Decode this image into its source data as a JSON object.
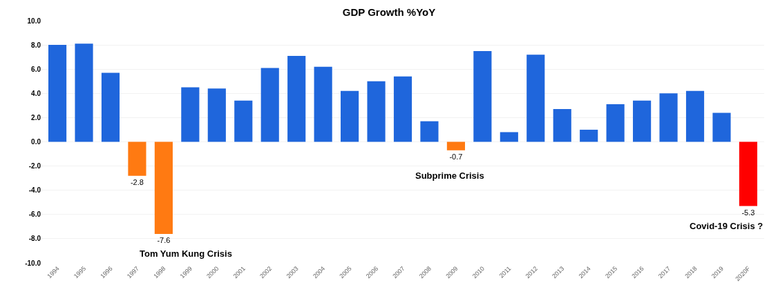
{
  "chart_data": {
    "type": "bar",
    "title": "GDP Growth %YoY",
    "categories": [
      "1994",
      "1995",
      "1996",
      "1997",
      "1998",
      "1999",
      "2000",
      "2001",
      "2002",
      "2003",
      "2004",
      "2005",
      "2006",
      "2007",
      "2008",
      "2009",
      "2010",
      "2011",
      "2012",
      "2013",
      "2014",
      "2015",
      "2016",
      "2017",
      "2018",
      "2019",
      "2020F"
    ],
    "values": [
      8.0,
      8.1,
      5.7,
      -2.8,
      -7.6,
      4.5,
      4.4,
      3.4,
      6.1,
      7.1,
      6.2,
      4.2,
      5.0,
      5.4,
      1.7,
      -0.7,
      7.5,
      0.8,
      7.2,
      2.7,
      1.0,
      3.1,
      3.4,
      4.0,
      4.2,
      2.4,
      -5.3
    ],
    "colors": [
      "#1f66dc",
      "#1f66dc",
      "#1f66dc",
      "#ff7a12",
      "#ff7a12",
      "#1f66dc",
      "#1f66dc",
      "#1f66dc",
      "#1f66dc",
      "#1f66dc",
      "#1f66dc",
      "#1f66dc",
      "#1f66dc",
      "#1f66dc",
      "#1f66dc",
      "#ff7a12",
      "#1f66dc",
      "#1f66dc",
      "#1f66dc",
      "#1f66dc",
      "#1f66dc",
      "#1f66dc",
      "#1f66dc",
      "#1f66dc",
      "#1f66dc",
      "#1f66dc",
      "#ff0000"
    ],
    "value_labels": [
      null,
      null,
      null,
      "-2.8",
      "-7.6",
      null,
      null,
      null,
      null,
      null,
      null,
      null,
      null,
      null,
      null,
      "-0.7",
      null,
      null,
      null,
      null,
      null,
      null,
      null,
      null,
      null,
      null,
      "-5.3"
    ],
    "ylim": [
      -10,
      10
    ],
    "yticks": [
      {
        "value": -10,
        "label": "-10.0"
      },
      {
        "value": -8,
        "label": "-8.0"
      },
      {
        "value": -6,
        "label": "-6.0"
      },
      {
        "value": -4,
        "label": "-4.0"
      },
      {
        "value": -2,
        "label": "-2.0"
      },
      {
        "value": 0,
        "label": "0.0"
      },
      {
        "value": 2,
        "label": "2.0"
      },
      {
        "value": 4,
        "label": "4.0"
      },
      {
        "value": 6,
        "label": "6.0"
      },
      {
        "value": 8,
        "label": "8.0"
      },
      {
        "value": 10,
        "label": "10.0"
      }
    ],
    "annotations": [
      "Tom Yum Kung Crisis",
      "Subprime Crisis",
      "Covid-19 Crisis ?"
    ],
    "grid": "y"
  }
}
